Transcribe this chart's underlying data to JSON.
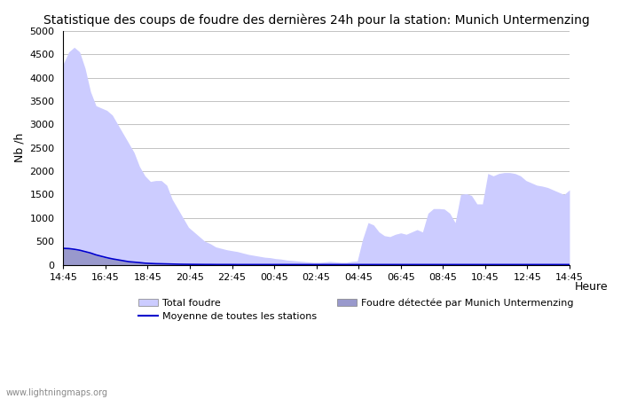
{
  "title": "Statistique des coups de foudre des dernières 24h pour la station: Munich Untermenzing",
  "ylabel": "Nb /h",
  "xlabel": "Heure",
  "ylim": [
    0,
    5000
  ],
  "yticks": [
    0,
    500,
    1000,
    1500,
    2000,
    2500,
    3000,
    3500,
    4000,
    4500,
    5000
  ],
  "xtick_labels": [
    "14:45",
    "16:45",
    "18:45",
    "20:45",
    "22:45",
    "00:45",
    "02:45",
    "04:45",
    "06:45",
    "08:45",
    "10:45",
    "12:45",
    "14:45"
  ],
  "watermark": "www.lightningmaps.org",
  "legend_total": "Total foudre",
  "legend_moyenne": "Moyenne de toutes les stations",
  "legend_station": "Foudre détectée par Munich Untermenzing",
  "total_foudre": [
    4300,
    4550,
    4650,
    4550,
    4200,
    3700,
    3400,
    3350,
    3300,
    3200,
    3000,
    2800,
    2600,
    2400,
    2100,
    1900,
    1780,
    1800,
    1800,
    1700,
    1400,
    1200,
    1000,
    800,
    700,
    600,
    500,
    450,
    380,
    350,
    320,
    300,
    280,
    250,
    220,
    200,
    180,
    160,
    150,
    130,
    120,
    100,
    90,
    80,
    70,
    60,
    50,
    50,
    60,
    70,
    60,
    50,
    50,
    70,
    80,
    550,
    900,
    850,
    700,
    620,
    600,
    650,
    680,
    650,
    700,
    750,
    700,
    1100,
    1200,
    1200,
    1190,
    1100,
    900,
    1500,
    1520,
    1480,
    1300,
    1300,
    1950,
    1900,
    1950,
    1970,
    1970,
    1950,
    1900,
    1800,
    1750,
    1700,
    1680,
    1650,
    1600,
    1550,
    1500,
    1600
  ],
  "station_foudre": [
    350,
    340,
    320,
    300,
    270,
    240,
    200,
    170,
    140,
    120,
    100,
    80,
    60,
    50,
    40,
    30,
    25,
    20,
    18,
    15,
    12,
    10,
    8,
    7,
    6,
    5,
    4,
    4,
    3,
    3,
    3,
    3,
    2,
    2,
    2,
    2,
    2,
    2,
    2,
    2,
    2,
    2,
    2,
    2,
    2,
    2,
    2,
    2,
    2,
    2,
    2,
    2,
    2,
    2,
    2,
    2,
    2,
    2,
    2,
    2,
    2,
    2,
    2,
    2,
    2,
    2,
    2,
    2,
    2,
    2,
    2,
    2,
    2,
    2,
    2,
    2,
    2,
    2,
    2,
    2,
    2,
    2,
    2,
    2,
    2,
    2,
    2,
    2,
    2,
    2,
    2,
    2,
    2,
    2,
    2,
    2,
    2
  ],
  "moyenne": [
    350,
    345,
    330,
    310,
    280,
    250,
    210,
    180,
    150,
    125,
    105,
    85,
    65,
    55,
    45,
    33,
    27,
    22,
    20,
    17,
    14,
    11,
    9,
    8,
    7,
    6,
    5,
    5,
    4,
    4,
    4,
    4,
    3,
    3,
    3,
    3,
    3,
    3,
    3,
    3,
    3,
    3,
    3,
    3,
    3,
    3,
    3,
    3,
    3,
    3,
    3,
    3,
    3,
    3,
    3,
    3,
    3,
    3,
    3,
    3,
    3,
    3,
    3,
    3,
    3,
    3,
    3,
    3,
    3,
    3,
    3,
    3,
    3,
    3,
    3,
    3,
    3,
    3,
    3,
    3,
    3,
    3,
    3,
    3,
    3,
    3,
    3,
    3,
    3,
    3,
    3,
    3,
    3,
    3,
    3,
    3,
    3
  ],
  "bg_color": "#ffffff",
  "fill_total_color": "#ccccff",
  "fill_station_color": "#9999cc",
  "line_color": "#0000cc",
  "grid_color": "#aaaaaa",
  "title_fontsize": 10,
  "axis_fontsize": 9,
  "tick_fontsize": 8
}
